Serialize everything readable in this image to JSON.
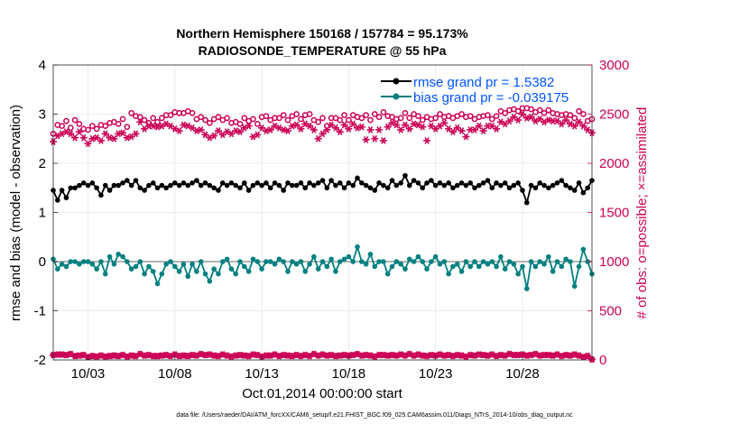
{
  "chart_data": {
    "type": "line",
    "title_line1": "Northern Hemisphere 150168 / 157784 = 95.173%",
    "title_line2": "RADIOSONDE_TEMPERATURE @ 55 hPa",
    "xlabel": "Oct.01,2014 00:00:00 start",
    "ylabel_left": "rmse and bias (model - observation)",
    "ylabel_right": "# of obs: o=possible; ×=assimilated",
    "footer": "data file: /Users/raeder/DAI/ATM_forcXX/CAM6_setup/f.e21.FHIST_BGC.f09_025.CAM6assim.011/Diags_NTrS_2014-10/obs_diag_output.nc",
    "x_ticks": [
      3,
      8,
      13,
      18,
      23,
      28
    ],
    "x_tick_labels": [
      "10/03",
      "10/08",
      "10/13",
      "10/18",
      "10/23",
      "10/28"
    ],
    "x_range": [
      1,
      32
    ],
    "y_left_range": [
      -2,
      4
    ],
    "y_left_ticks": [
      -2,
      -1,
      0,
      1,
      2,
      3,
      4
    ],
    "y_right_range": [
      0,
      3000
    ],
    "y_right_ticks": [
      0,
      500,
      1000,
      1500,
      2000,
      2500,
      3000
    ],
    "colors": {
      "rmse": "#000000",
      "bias": "#008080",
      "obs": "#cc0055",
      "legend_text": "#0055ff",
      "zero_line": "#b3b3b3"
    },
    "series": [
      {
        "name": "rmse",
        "legend": "rmse grand pr = 1.5382",
        "x_start": 1,
        "x_step": 0.25,
        "values": [
          1.45,
          1.25,
          1.45,
          1.3,
          1.5,
          1.5,
          1.55,
          1.6,
          1.55,
          1.6,
          1.5,
          1.35,
          1.55,
          1.45,
          1.55,
          1.55,
          1.6,
          1.65,
          1.55,
          1.65,
          1.5,
          1.45,
          1.55,
          1.6,
          1.5,
          1.55,
          1.5,
          1.55,
          1.6,
          1.55,
          1.6,
          1.55,
          1.6,
          1.65,
          1.55,
          1.6,
          1.55,
          1.5,
          1.45,
          1.6,
          1.55,
          1.6,
          1.55,
          1.5,
          1.6,
          1.45,
          1.55,
          1.6,
          1.55,
          1.6,
          1.5,
          1.6,
          1.55,
          1.45,
          1.6,
          1.55,
          1.55,
          1.6,
          1.5,
          1.6,
          1.55,
          1.6,
          1.65,
          1.5,
          1.65,
          1.55,
          1.6,
          1.5,
          1.6,
          1.55,
          1.7,
          1.6,
          1.55,
          1.5,
          1.45,
          1.6,
          1.55,
          1.5,
          1.65,
          1.55,
          1.6,
          1.75,
          1.55,
          1.65,
          1.6,
          1.5,
          1.6,
          1.65,
          1.55,
          1.6,
          1.55,
          1.6,
          1.5,
          1.55,
          1.6,
          1.55,
          1.6,
          1.5,
          1.55,
          1.6,
          1.65,
          1.5,
          1.6,
          1.55,
          1.6,
          1.5,
          1.55,
          1.6,
          1.45,
          1.2,
          1.55,
          1.5,
          1.6,
          1.55,
          1.5,
          1.55,
          1.6,
          1.65,
          1.55,
          1.5,
          1.45,
          1.6,
          1.4,
          1.5,
          1.65
        ]
      },
      {
        "name": "bias",
        "legend": "bias grand pr = -0.039175",
        "x_start": 1,
        "x_step": 0.25,
        "values": [
          0.05,
          -0.15,
          -0.05,
          -0.1,
          0.0,
          0.0,
          -0.05,
          0.0,
          0.0,
          -0.05,
          -0.15,
          0.0,
          -0.25,
          0.1,
          -0.05,
          0.15,
          0.1,
          0.0,
          -0.15,
          -0.1,
          0.0,
          -0.25,
          -0.1,
          -0.2,
          -0.45,
          -0.25,
          -0.05,
          0.0,
          -0.1,
          -0.2,
          -0.05,
          -0.3,
          -0.05,
          -0.2,
          0.0,
          -0.25,
          -0.4,
          -0.15,
          -0.25,
          0.0,
          0.05,
          -0.15,
          -0.25,
          0.0,
          -0.1,
          -0.2,
          0.05,
          0.0,
          -0.15,
          0.0,
          0.0,
          -0.05,
          0.05,
          0.0,
          -0.2,
          0.0,
          -0.05,
          0.0,
          -0.2,
          -0.05,
          0.1,
          -0.15,
          0.0,
          -0.1,
          0.05,
          -0.2,
          0.0,
          0.05,
          0.1,
          0.0,
          0.3,
          0.0,
          -0.05,
          0.15,
          -0.1,
          0.0,
          0.0,
          -0.25,
          -0.1,
          0.0,
          -0.05,
          -0.15,
          0.05,
          0.0,
          0.1,
          0.0,
          -0.15,
          0.0,
          0.1,
          -0.05,
          0.0,
          -0.25,
          -0.1,
          -0.05,
          -0.2,
          0.0,
          -0.1,
          0.0,
          -0.1,
          0.0,
          -0.05,
          0.0,
          -0.1,
          0.1,
          -0.15,
          0.0,
          -0.05,
          -0.25,
          -0.1,
          -0.55,
          0.0,
          -0.1,
          0.0,
          -0.05,
          0.1,
          -0.2,
          0.0,
          -0.1,
          0.05,
          0.0,
          -0.5,
          -0.1,
          0.25,
          0.0,
          -0.25
        ]
      },
      {
        "name": "obs_possible",
        "x_start": 1,
        "x_step": 0.25,
        "values": [
          2300,
          2390,
          2380,
          2430,
          2360,
          2440,
          2400,
          2350,
          2340,
          2380,
          2350,
          2390,
          2380,
          2410,
          2420,
          2400,
          2450,
          2370,
          2510,
          2480,
          2470,
          2440,
          2410,
          2460,
          2420,
          2460,
          2490,
          2490,
          2520,
          2510,
          2510,
          2530,
          2510,
          2450,
          2470,
          2440,
          2410,
          2450,
          2470,
          2440,
          2460,
          2410,
          2420,
          2400,
          2460,
          2430,
          2450,
          2400,
          2470,
          2480,
          2440,
          2460,
          2460,
          2490,
          2440,
          2480,
          2500,
          2450,
          2490,
          2500,
          2440,
          2420,
          2460,
          2380,
          2460,
          2460,
          2440,
          2490,
          2440,
          2490,
          2470,
          2460,
          2490,
          2440,
          2500,
          2470,
          2520,
          2480,
          2470,
          2450,
          2460,
          2510,
          2460,
          2500,
          2480,
          2440,
          2470,
          2450,
          2460,
          2500,
          2470,
          2480,
          2460,
          2480,
          2500,
          2470,
          2480,
          2450,
          2470,
          2480,
          2490,
          2450,
          2480,
          2530,
          2510,
          2540,
          2550,
          2530,
          2560,
          2560,
          2550,
          2520,
          2540,
          2510,
          2540,
          2510,
          2500,
          2490,
          2500,
          2490,
          2460,
          2530,
          2500,
          2430,
          2450
        ]
      },
      {
        "name": "obs_assimilated",
        "x_start": 1,
        "x_step": 0.25,
        "values": [
          2220,
          2280,
          2300,
          2320,
          2300,
          2260,
          2320,
          2260,
          2200,
          2250,
          2260,
          2230,
          2300,
          2260,
          2250,
          2300,
          2310,
          2260,
          2270,
          2300,
          2420,
          2350,
          2380,
          2380,
          2370,
          2380,
          2400,
          2380,
          2350,
          2330,
          2390,
          2380,
          2360,
          2330,
          2340,
          2290,
          2260,
          2280,
          2330,
          2290,
          2320,
          2300,
          2330,
          2320,
          2360,
          2380,
          2270,
          2290,
          2360,
          2330,
          2340,
          2380,
          2360,
          2340,
          2330,
          2380,
          2390,
          2350,
          2400,
          2380,
          2340,
          2250,
          2300,
          2340,
          2390,
          2360,
          2320,
          2390,
          2350,
          2400,
          2360,
          2370,
          2240,
          2340,
          2250,
          2340,
          2230,
          2370,
          2410,
          2390,
          2340,
          2390,
          2350,
          2400,
          2390,
          2370,
          2230,
          2380,
          2350,
          2380,
          2410,
          2350,
          2320,
          2360,
          2330,
          2270,
          2340,
          2340,
          2380,
          2330,
          2380,
          2380,
          2350,
          2420,
          2400,
          2430,
          2470,
          2440,
          2500,
          2460,
          2470,
          2430,
          2450,
          2420,
          2440,
          2430,
          2430,
          2400,
          2440,
          2400,
          2380,
          2420,
          2380,
          2340,
          2310
        ]
      },
      {
        "name": "obs_bottom",
        "x_start": 1,
        "x_step": 0.25,
        "values": [
          50,
          55,
          55,
          50,
          60,
          40,
          45,
          50,
          30,
          40,
          35,
          45,
          35,
          40,
          45,
          40,
          50,
          35,
          45,
          40,
          60,
          45,
          50,
          40,
          40,
          45,
          50,
          40,
          55,
          40,
          45,
          40,
          50,
          45,
          60,
          50,
          55,
          45,
          40,
          55,
          45,
          35,
          45,
          50,
          45,
          40,
          55,
          50,
          35,
          45,
          45,
          55,
          40,
          50,
          45,
          40,
          50,
          40,
          50,
          40,
          60,
          45,
          55,
          45,
          50,
          40,
          45,
          50,
          45,
          50,
          60,
          45,
          50,
          45,
          35,
          50,
          50,
          45,
          50,
          45,
          55,
          45,
          60,
          45,
          55,
          45,
          40,
          50,
          45,
          55,
          45,
          50,
          40,
          50,
          45,
          35,
          50,
          45,
          55,
          50,
          45,
          55,
          40,
          50,
          45,
          60,
          50,
          50,
          55,
          45,
          50,
          60,
          45,
          50,
          50,
          45,
          55,
          40,
          50,
          45,
          55,
          45,
          30,
          40,
          5
        ]
      }
    ]
  }
}
